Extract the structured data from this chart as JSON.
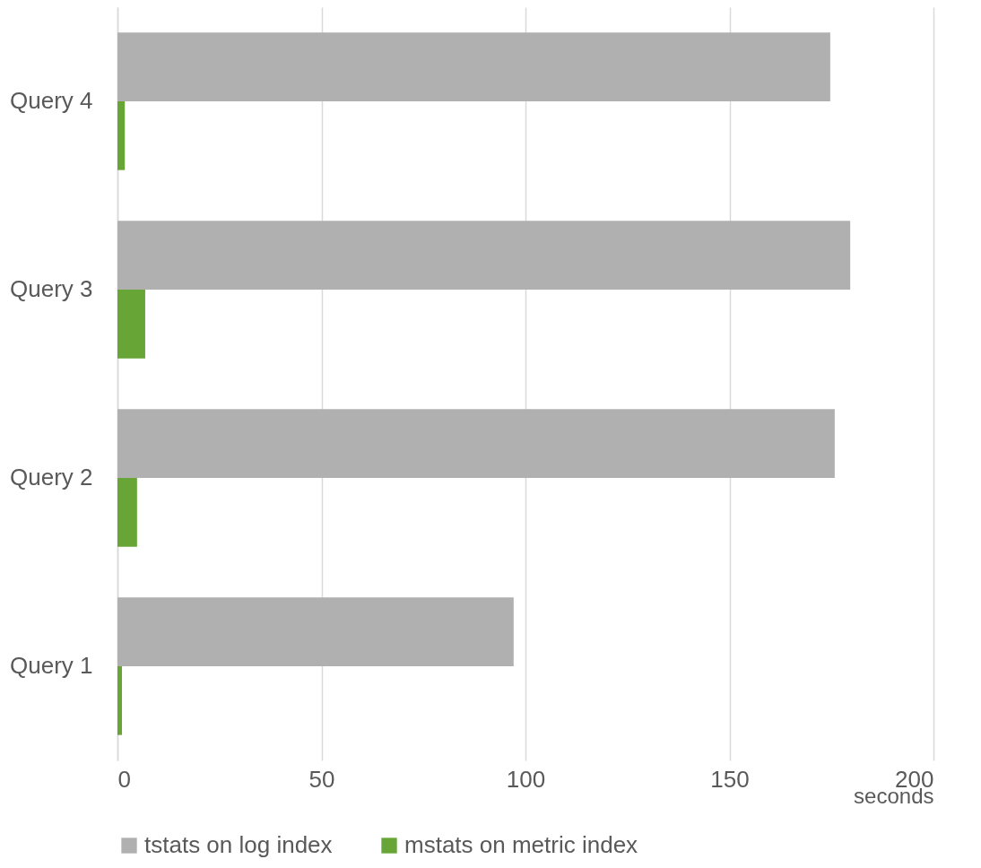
{
  "chart_data": {
    "type": "bar",
    "orientation": "horizontal",
    "xlabel": "seconds",
    "categories": [
      "Query 4",
      "Query 3",
      "Query 2",
      "Query 1"
    ],
    "series": [
      {
        "name": "tstats on log index",
        "color": "#b0b0b0",
        "values": [
          174.7,
          179.6,
          175.8,
          97.1
        ]
      },
      {
        "name": "mstats on metric index",
        "color": "#66a536",
        "values": [
          1.8,
          6.8,
          4.8,
          1.1
        ]
      }
    ],
    "xlim": [
      0,
      200
    ],
    "xticks": [
      0,
      50,
      100,
      150,
      200
    ],
    "grid": "x",
    "legend": "bottom left"
  }
}
